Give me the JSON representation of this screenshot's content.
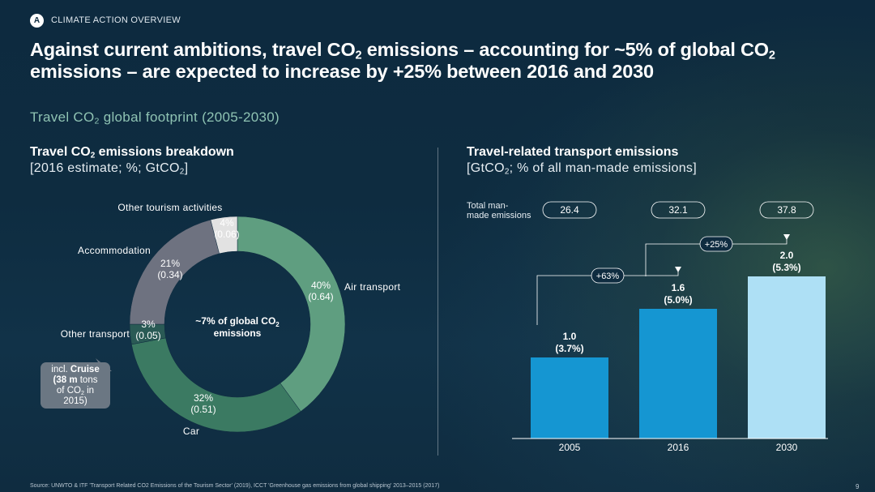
{
  "header": {
    "badge": "A",
    "section": "CLIMATE ACTION OVERVIEW",
    "headline_part1": "Against current ambitions, travel CO",
    "headline_sub1": "2",
    "headline_part2": " emissions – accounting for ~5% of global CO",
    "headline_sub2": "2",
    "headline_part3": " emissions – are expected to increase by +25% between 2016 and 2030",
    "subtitle_part1": "Travel CO",
    "subtitle_sub": "2",
    "subtitle_part2": " global footprint (2005-2030)"
  },
  "left_panel": {
    "title_part1": "Travel CO",
    "title_sub": "2",
    "title_part2": " emissions breakdown",
    "unit_part1": "[2016 estimate; %; GtCO",
    "unit_sub": "2",
    "unit_part2": "]",
    "center_label_line1": "~7% of global CO",
    "center_label_sub": "2",
    "center_label_line2": "emissions",
    "callout_line1_prefix": "incl. ",
    "callout_line1_bold": "Cruise",
    "callout_line2_bold": "(38 m",
    "callout_line2_rest": " tons",
    "callout_line3_a": "of CO",
    "callout_line3_sub": "2",
    "callout_line3_b": " in",
    "callout_line4": "2015)"
  },
  "right_panel": {
    "title": "Travel-related transport emissions",
    "unit_part1": "[GtCO",
    "unit_sub": "2",
    "unit_part2": "; % of all man-made emissions]",
    "total_label_line1": "Total man-",
    "total_label_line2": "made emissions"
  },
  "chart_data": [
    {
      "type": "pie",
      "variant": "donut",
      "title": "Travel CO2 emissions breakdown",
      "subtitle": "[2016 estimate; %; GtCO2]",
      "center_text": "~7% of global CO2 emissions",
      "slices": [
        {
          "label": "Air transport",
          "percent": 40,
          "value": 0.64,
          "percent_label": "40%",
          "value_label": "(0.64)",
          "color": "#5f9e80"
        },
        {
          "label": "Car",
          "percent": 32,
          "value": 0.51,
          "percent_label": "32%",
          "value_label": "(0.51)",
          "color": "#3b7a62"
        },
        {
          "label": "Other transport",
          "percent": 3,
          "value": 0.05,
          "percent_label": "3%",
          "value_label": "(0.05)",
          "color": "#2a5a55"
        },
        {
          "label": "Accommodation",
          "percent": 21,
          "value": 0.34,
          "percent_label": "21%",
          "value_label": "(0.34)",
          "color": "#6e7280"
        },
        {
          "label": "Other tourism activities",
          "percent": 4,
          "value": 0.06,
          "percent_label": "4%",
          "value_label": "(0.06)",
          "color": "#e2e2e2"
        }
      ]
    },
    {
      "type": "bar",
      "title": "Travel-related transport emissions",
      "subtitle": "[GtCO2; % of all man-made emissions]",
      "categories": [
        "2005",
        "2016",
        "2030"
      ],
      "values": [
        1.0,
        1.6,
        2.0
      ],
      "value_labels": [
        "1.0",
        "1.6",
        "2.0"
      ],
      "share_labels": [
        "(3.7%)",
        "(5.0%)",
        "(5.3%)"
      ],
      "total_man_made_emissions": [
        "26.4",
        "32.1",
        "37.8"
      ],
      "bar_colors": [
        "#1596d2",
        "#1596d2",
        "#aee0f5"
      ],
      "growth_annotations": [
        {
          "from": "2005",
          "to": "2016",
          "label": "+63%"
        },
        {
          "from": "2016",
          "to": "2030",
          "label": "+25%"
        }
      ],
      "ylim": [
        0,
        2.0
      ]
    }
  ],
  "footer": {
    "source": "Source: UNWTO & ITF 'Transport Related CO2 Emissions of the Tourism Sector' (2019), ICCT 'Greenhouse gas emissions from global shipping' 2013–2015 (2017)",
    "page": "9"
  }
}
